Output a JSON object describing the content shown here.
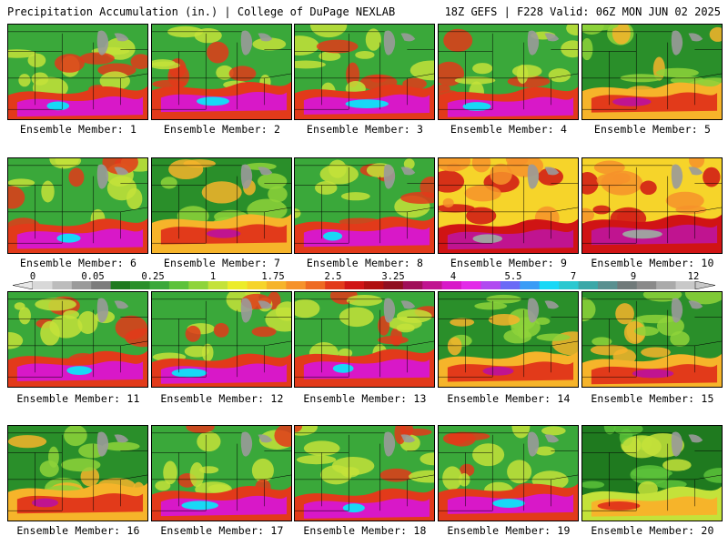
{
  "header": {
    "title_left": "Precipitation Accumulation (in.) | College of DuPage NEXLAB",
    "title_right": "18Z GEFS | F228 Valid: 06Z MON JUN 02 2025"
  },
  "scale": {
    "tick_labels": [
      "0",
      "0.05",
      "0.25",
      "1",
      "1.75",
      "2.5",
      "3.25",
      "4",
      "5.5",
      "7",
      "9",
      "12"
    ],
    "colors": [
      "#d8d8d8",
      "#bcbcbc",
      "#9a9a9a",
      "#7c7c7c",
      "#1f7a1f",
      "#2a8f2a",
      "#3aa83a",
      "#5cc23a",
      "#8ed43a",
      "#c4e23a",
      "#ecec2a",
      "#f6d42a",
      "#f6b42a",
      "#f6922a",
      "#ee6a22",
      "#e23a1a",
      "#d01414",
      "#b01010",
      "#901020",
      "#a0105a",
      "#c01490",
      "#d818c8",
      "#e22ae8",
      "#b04af0",
      "#6a6af6",
      "#3a9cf6",
      "#18d8f6",
      "#2ac8d0",
      "#3aa8a8",
      "#5a9090",
      "#707a7a",
      "#8a8a8a",
      "#aaaaaa",
      "#c8c8c8"
    ]
  },
  "panels": [
    {
      "label": "Ensemble Member: 1"
    },
    {
      "label": "Ensemble Member: 2"
    },
    {
      "label": "Ensemble Member: 3"
    },
    {
      "label": "Ensemble Member: 4"
    },
    {
      "label": "Ensemble Member: 5"
    },
    {
      "label": "Ensemble Member: 6"
    },
    {
      "label": "Ensemble Member: 7"
    },
    {
      "label": "Ensemble Member: 8"
    },
    {
      "label": "Ensemble Member: 9"
    },
    {
      "label": "Ensemble Member: 10"
    },
    {
      "label": "Ensemble Member: 11"
    },
    {
      "label": "Ensemble Member: 12"
    },
    {
      "label": "Ensemble Member: 13"
    },
    {
      "label": "Ensemble Member: 14"
    },
    {
      "label": "Ensemble Member: 15"
    },
    {
      "label": "Ensemble Member: 16"
    },
    {
      "label": "Ensemble Member: 17"
    },
    {
      "label": "Ensemble Member: 18"
    },
    {
      "label": "Ensemble Member: 19"
    },
    {
      "label": "Ensemble Member: 20"
    }
  ]
}
